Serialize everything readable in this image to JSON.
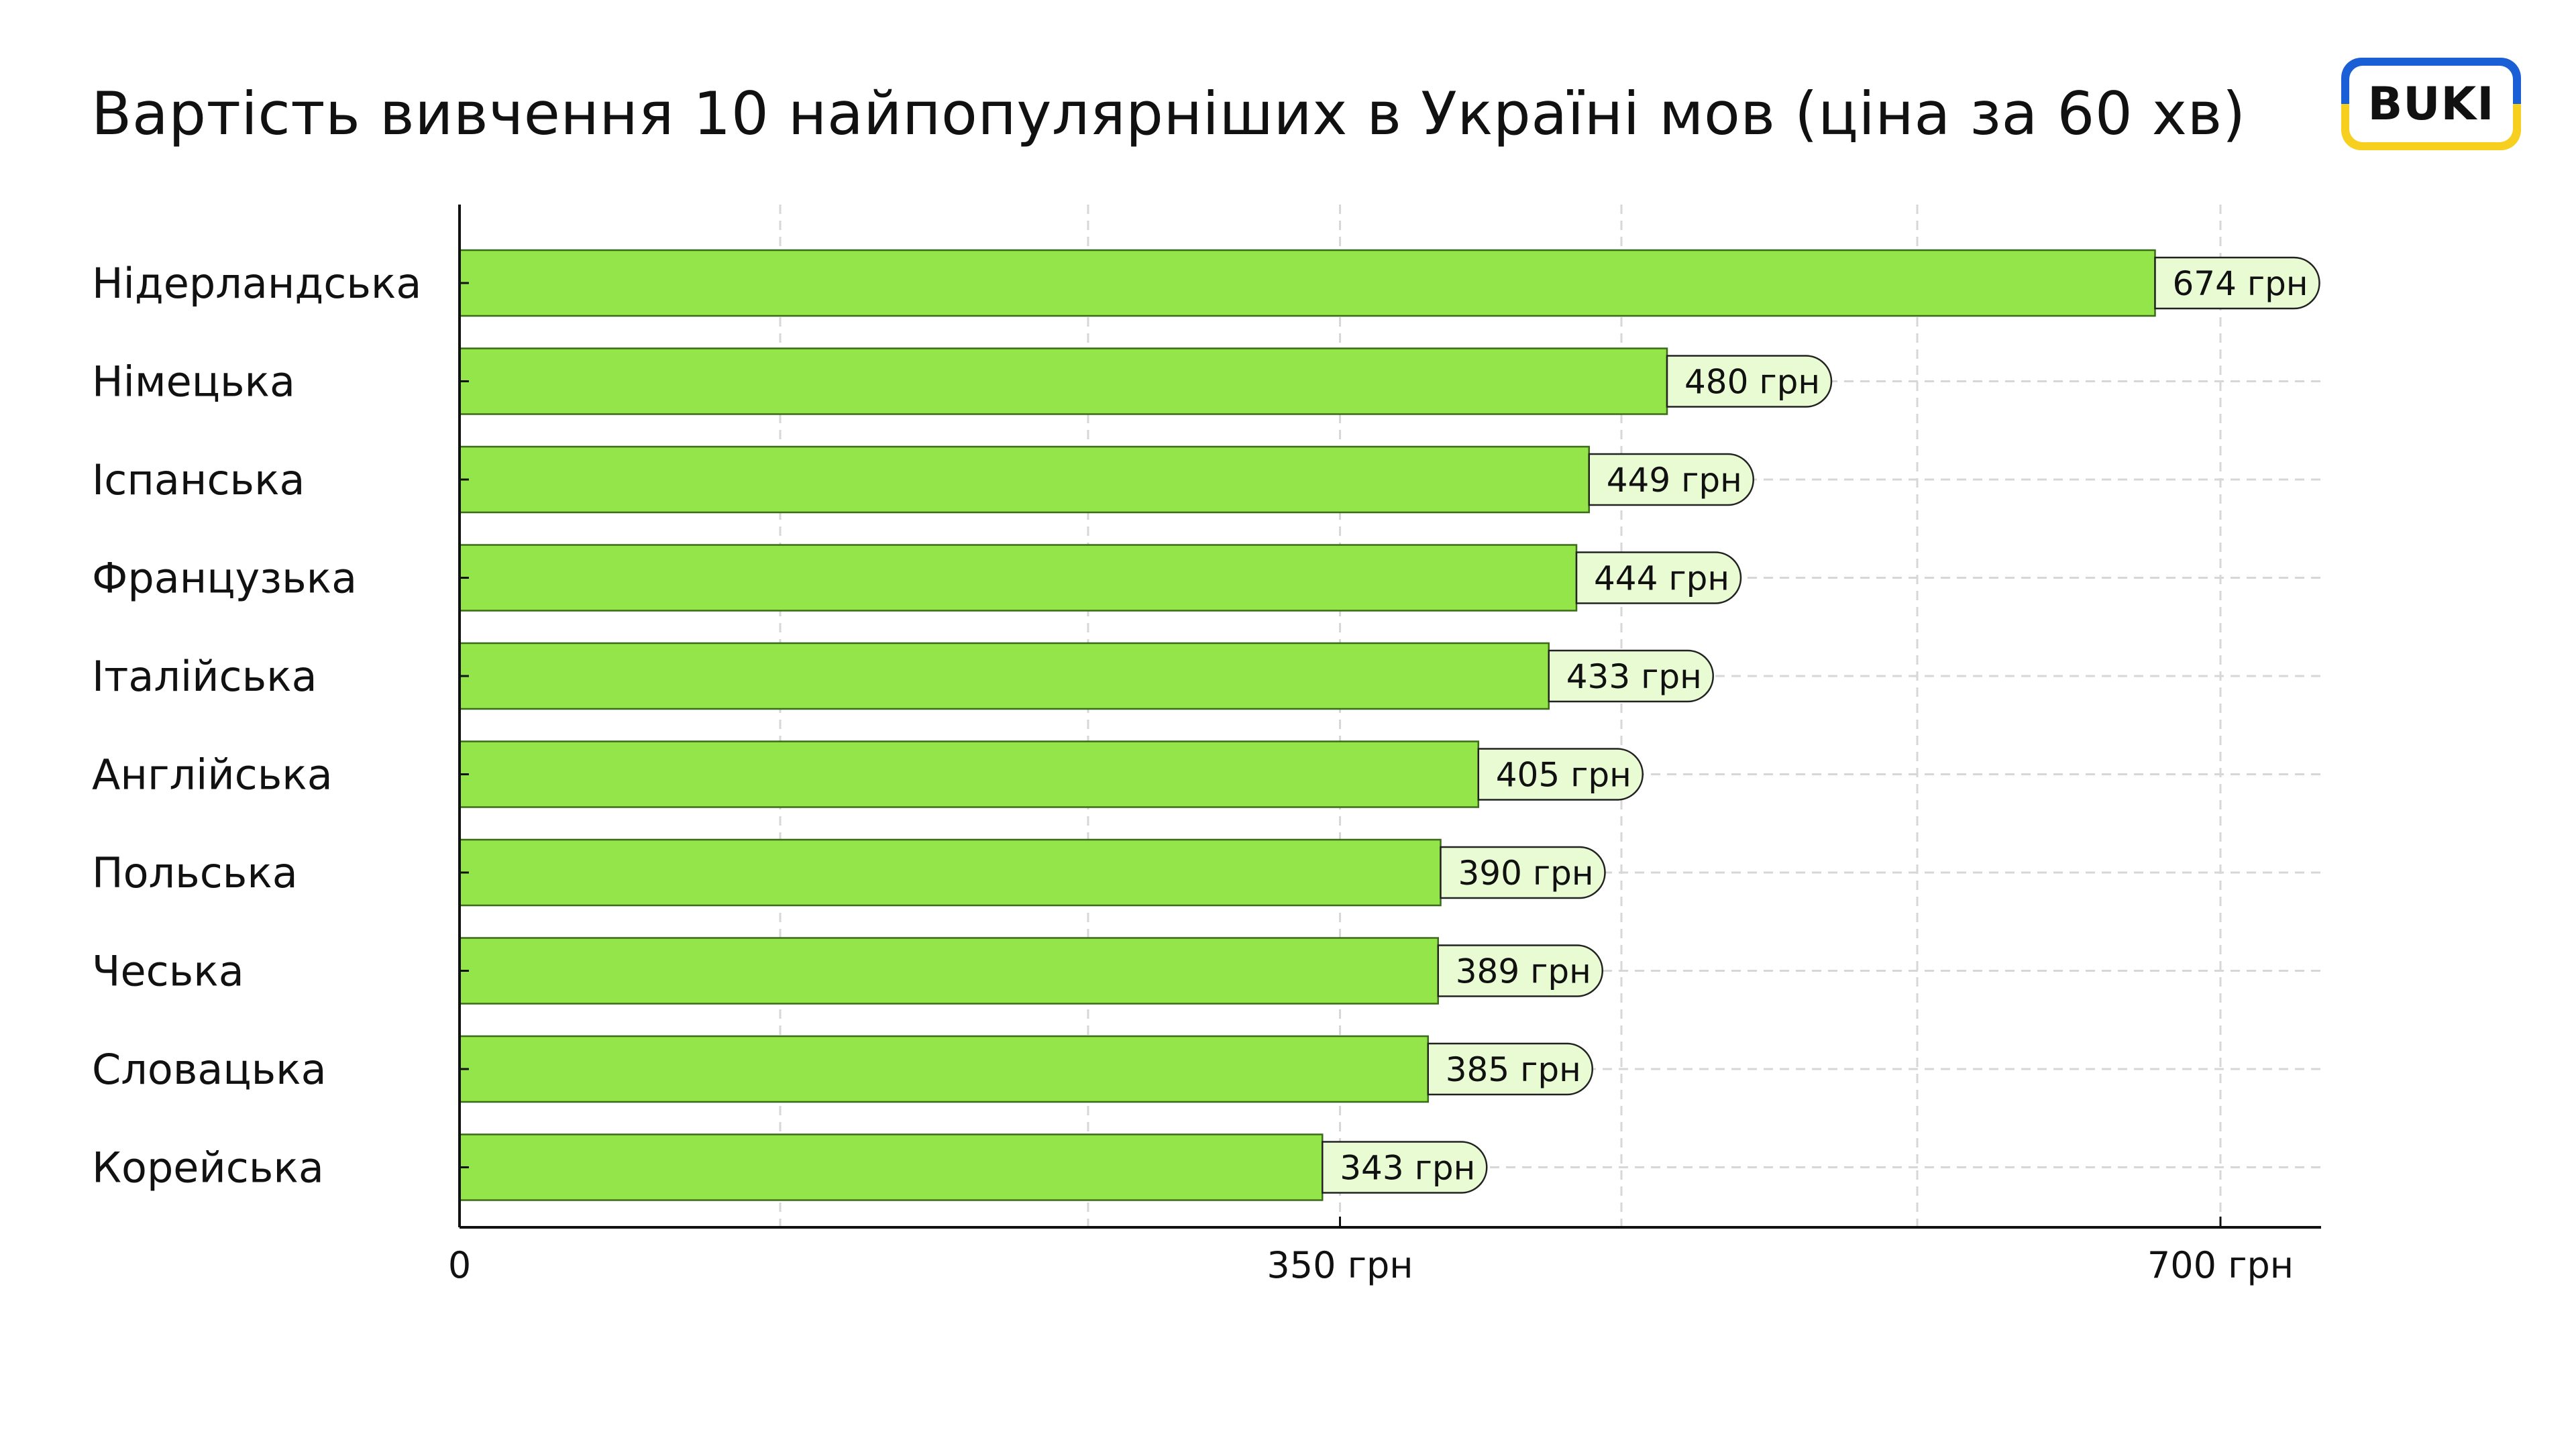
{
  "title": "Вартість вивчення 10 найпопулярніших в Україні мов (ціна за 60 хв)",
  "logo_text": "BUKI",
  "colors": {
    "bar": "#93e549",
    "bar_stroke": "#3a6b18",
    "label_bg": "#e8fbd3",
    "grid": "#d7d7d7",
    "axis": "#111111",
    "logo_blue": "#1b5fd6",
    "logo_yellow": "#f6cf1f"
  },
  "chart_data": {
    "type": "bar",
    "orientation": "horizontal",
    "title": "Вартість вивчення 10 найпопулярніших в Україні мов (ціна за 60 хв)",
    "categories": [
      "Нідерландська",
      "Німецька",
      "Іспанська",
      "Французька",
      "Італійська",
      "Англійська",
      "Польська",
      "Чеська",
      "Словацька",
      "Корейська"
    ],
    "values": [
      674,
      480,
      449,
      444,
      433,
      405,
      390,
      389,
      385,
      343
    ],
    "value_labels": [
      "674 грн",
      "480 грн",
      "449 грн",
      "444 грн",
      "433 грн",
      "405 грн",
      "390 грн",
      "389 грн",
      "385 грн",
      "343 грн"
    ],
    "x_ticks": [
      0,
      350,
      700
    ],
    "x_tick_labels": [
      "0",
      "350 грн",
      "700 грн"
    ],
    "xlim": [
      0,
      743
    ],
    "grid": true,
    "legend": "none"
  }
}
